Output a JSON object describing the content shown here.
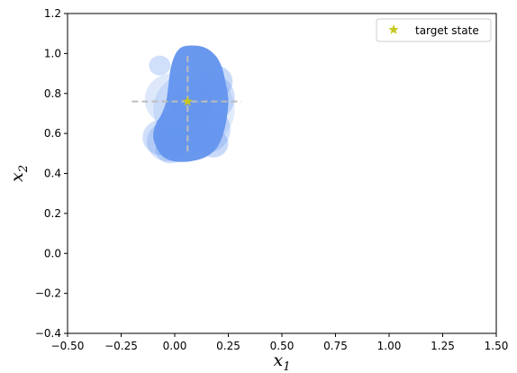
{
  "chart_data": {
    "type": "scatter",
    "xlabel": "x",
    "xlabel_sub": "1",
    "ylabel": "x",
    "ylabel_sub": "2",
    "xlim": [
      -0.5,
      1.5
    ],
    "ylim": [
      -0.4,
      1.2
    ],
    "x_ticks": [
      -0.5,
      -0.25,
      0.0,
      0.25,
      0.5,
      0.75,
      1.0,
      1.25,
      1.5
    ],
    "x_tick_labels": [
      "−0.50",
      "−0.25",
      "0.00",
      "0.25",
      "0.50",
      "0.75",
      "1.00",
      "1.25",
      "1.50"
    ],
    "y_ticks": [
      -0.4,
      -0.2,
      0.0,
      0.2,
      0.4,
      0.6,
      0.8,
      1.0,
      1.2
    ],
    "y_tick_labels": [
      "−0.4",
      "−0.2",
      "0.0",
      "0.2",
      "0.4",
      "0.6",
      "0.8",
      "1.0",
      "1.2"
    ],
    "grid": false,
    "legend_position": "top-right",
    "target": {
      "name": "target state",
      "x": 0.06,
      "y": 0.76,
      "color": "#c8c81e",
      "marker": "star"
    },
    "crosshair": {
      "x": 0.06,
      "y": 0.76,
      "x_range": [
        -0.2,
        0.31
      ],
      "y_range": [
        0.51,
        1.0
      ],
      "color": "#bdbdbd",
      "dashed": true
    },
    "region_color": "#6495ed",
    "circles": [
      {
        "x": -0.01,
        "y": 0.77,
        "r": 0.13,
        "opacity": 0.22
      },
      {
        "x": 0.09,
        "y": 0.72,
        "r": 0.19,
        "opacity": 0.18
      },
      {
        "x": -0.06,
        "y": 0.58,
        "r": 0.09,
        "opacity": 0.3
      },
      {
        "x": -0.03,
        "y": 0.56,
        "r": 0.1,
        "opacity": 0.28
      },
      {
        "x": 0.01,
        "y": 0.55,
        "r": 0.09,
        "opacity": 0.3
      },
      {
        "x": 0.14,
        "y": 0.62,
        "r": 0.12,
        "opacity": 0.3
      },
      {
        "x": 0.16,
        "y": 0.78,
        "r": 0.12,
        "opacity": 0.3
      },
      {
        "x": -0.07,
        "y": 0.94,
        "r": 0.05,
        "opacity": 0.3
      },
      {
        "x": 0.19,
        "y": 0.86,
        "r": 0.08,
        "opacity": 0.35
      },
      {
        "x": 0.12,
        "y": 0.96,
        "r": 0.07,
        "opacity": 0.35
      },
      {
        "x": 0.02,
        "y": 0.6,
        "r": 0.12,
        "opacity": 0.25
      },
      {
        "x": 0.18,
        "y": 0.55,
        "r": 0.07,
        "opacity": 0.35
      },
      {
        "x": -0.02,
        "y": 0.52,
        "r": 0.07,
        "opacity": 0.3
      },
      {
        "x": 0.08,
        "y": 0.76,
        "r": 0.1,
        "opacity": 0.35
      }
    ],
    "core_region": [
      [
        0.08,
        1.04
      ],
      [
        0.14,
        1.03
      ],
      [
        0.19,
        0.99
      ],
      [
        0.22,
        0.93
      ],
      [
        0.24,
        0.84
      ],
      [
        0.25,
        0.76
      ],
      [
        0.24,
        0.66
      ],
      [
        0.22,
        0.58
      ],
      [
        0.19,
        0.52
      ],
      [
        0.14,
        0.48
      ],
      [
        0.07,
        0.46
      ],
      [
        0.0,
        0.46
      ],
      [
        -0.05,
        0.48
      ],
      [
        -0.08,
        0.52
      ],
      [
        -0.1,
        0.58
      ],
      [
        -0.09,
        0.64
      ],
      [
        -0.06,
        0.7
      ],
      [
        -0.04,
        0.76
      ],
      [
        -0.03,
        0.84
      ],
      [
        -0.02,
        0.92
      ],
      [
        0.0,
        0.99
      ],
      [
        0.03,
        1.03
      ]
    ]
  }
}
